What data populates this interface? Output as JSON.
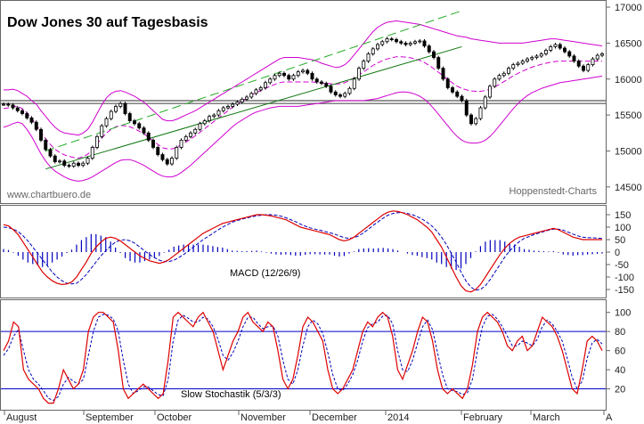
{
  "chart_data": [
    {
      "type": "candlestick",
      "title": "Dow Jones 30 auf Tagesbasis",
      "watermark_left": "www.chartbuero.de",
      "watermark_right": "Hoppenstedt-Charts",
      "xlabel": "",
      "ylabel": "",
      "y_ticks": [
        14500,
        15000,
        15500,
        16000,
        16500,
        17000
      ],
      "ylim": [
        14300,
        17050
      ],
      "x_month_labels": [
        "August",
        "September",
        "October",
        "November",
        "December",
        "2014",
        "February",
        "March",
        "A"
      ],
      "colors": {
        "bollinger": "#d000d0",
        "trend_upper": "#22aa22",
        "trend_lower": "#117711",
        "support_band": "#555555",
        "candle_up": "#ffffff",
        "candle_down": "#000000"
      },
      "price_close_path": [
        15650,
        15640,
        15600,
        15560,
        15520,
        15460,
        15400,
        15300,
        15150,
        15020,
        14930,
        14850,
        14860,
        14800,
        14790,
        14830,
        14800,
        14830,
        14900,
        15050,
        15200,
        15350,
        15450,
        15550,
        15620,
        15660,
        15520,
        15420,
        15380,
        15320,
        15250,
        15150,
        15050,
        14950,
        14880,
        14820,
        14900,
        15050,
        15150,
        15200,
        15250,
        15300,
        15380,
        15420,
        15480,
        15500,
        15560,
        15600,
        15620,
        15650,
        15680,
        15720,
        15750,
        15800,
        15850,
        15880,
        15950,
        16000,
        16050,
        16080,
        16050,
        16000,
        16050,
        16100,
        16120,
        16080,
        16000,
        15960,
        15940,
        15900,
        15820,
        15780,
        15760,
        15800,
        15870,
        16000,
        16150,
        16250,
        16350,
        16420,
        16480,
        16520,
        16560,
        16550,
        16520,
        16500,
        16480,
        16500,
        16520,
        16530,
        16460,
        16380,
        16300,
        16150,
        16000,
        15880,
        15820,
        15760,
        15700,
        15500,
        15380,
        15450,
        15600,
        15750,
        15900,
        16000,
        16050,
        16080,
        16150,
        16200,
        16220,
        16250,
        16280,
        16300,
        16320,
        16350,
        16400,
        16450,
        16480,
        16430,
        16380,
        16320,
        16250,
        16180,
        16120,
        16200,
        16280,
        16330,
        16350
      ],
      "bollinger_upper_path": [
        15850,
        15850,
        15860,
        15840,
        15800,
        15760,
        15700,
        15650,
        15560,
        15480,
        15400,
        15330,
        15280,
        15250,
        15240,
        15230,
        15220,
        15250,
        15300,
        15400,
        15520,
        15640,
        15740,
        15800,
        15830,
        15840,
        15820,
        15790,
        15760,
        15720,
        15680,
        15620,
        15560,
        15500,
        15440,
        15420,
        15420,
        15440,
        15470,
        15500,
        15530,
        15560,
        15600,
        15640,
        15680,
        15720,
        15760,
        15800,
        15840,
        15880,
        15920,
        15960,
        16000,
        16040,
        16080,
        16120,
        16160,
        16200,
        16240,
        16280,
        16300,
        16300,
        16300,
        16300,
        16290,
        16280,
        16270,
        16250,
        16220,
        16200,
        16180,
        16160,
        16170,
        16200,
        16260,
        16340,
        16420,
        16500,
        16580,
        16660,
        16720,
        16760,
        16790,
        16800,
        16810,
        16800,
        16790,
        16780,
        16770,
        16760,
        16740,
        16720,
        16700,
        16680,
        16660,
        16640,
        16620,
        16600,
        16590,
        16580,
        16560,
        16550,
        16540,
        16530,
        16520,
        16510,
        16500,
        16500,
        16500,
        16500,
        16500,
        16500,
        16510,
        16520,
        16530,
        16540,
        16550,
        16560,
        16560,
        16550,
        16540,
        16530,
        16520,
        16510,
        16500,
        16490,
        16480,
        16470,
        16460
      ],
      "bollinger_lower_path": [
        15330,
        15350,
        15380,
        15400,
        15380,
        15300,
        15200,
        15080,
        14960,
        14860,
        14780,
        14720,
        14680,
        14640,
        14610,
        14590,
        14580,
        14590,
        14610,
        14640,
        14680,
        14720,
        14760,
        14800,
        14840,
        14870,
        14880,
        14880,
        14860,
        14830,
        14800,
        14760,
        14720,
        14680,
        14650,
        14640,
        14640,
        14660,
        14700,
        14750,
        14800,
        14860,
        14920,
        14980,
        15040,
        15100,
        15160,
        15220,
        15280,
        15340,
        15390,
        15430,
        15470,
        15510,
        15540,
        15560,
        15580,
        15600,
        15610,
        15620,
        15620,
        15620,
        15620,
        15620,
        15630,
        15640,
        15650,
        15660,
        15670,
        15680,
        15690,
        15700,
        15700,
        15700,
        15700,
        15700,
        15700,
        15700,
        15710,
        15720,
        15730,
        15750,
        15770,
        15790,
        15810,
        15820,
        15820,
        15810,
        15790,
        15760,
        15720,
        15660,
        15590,
        15510,
        15430,
        15350,
        15270,
        15200,
        15150,
        15120,
        15110,
        15110,
        15120,
        15150,
        15200,
        15270,
        15350,
        15430,
        15510,
        15590,
        15660,
        15720,
        15770,
        15810,
        15840,
        15870,
        15890,
        15910,
        15930,
        15950,
        15960,
        15970,
        15980,
        15990,
        16000,
        16010,
        16020,
        16030,
        16040
      ],
      "support_lines": [
        15700,
        15660
      ],
      "trend_upper": {
        "from": [
          9,
          15000
        ],
        "to": [
          98,
          16950
        ]
      },
      "trend_lower": {
        "from": [
          9,
          14750
        ],
        "to": [
          98,
          16450
        ]
      }
    },
    {
      "type": "line",
      "name": "MACD (12/26/9)",
      "y_ticks": [
        -150,
        -100,
        -50,
        0,
        50,
        100,
        150
      ],
      "ylim": [
        -175,
        175
      ],
      "colors": {
        "macd": "#dd0000",
        "signal": "#0000bb",
        "hist": "#0000bb"
      },
      "macd_path": [
        110,
        105,
        90,
        70,
        40,
        10,
        -20,
        -50,
        -80,
        -100,
        -115,
        -125,
        -130,
        -128,
        -120,
        -100,
        -70,
        -40,
        -5,
        20,
        40,
        55,
        60,
        55,
        45,
        30,
        15,
        0,
        -15,
        -25,
        -35,
        -40,
        -45,
        -40,
        -30,
        -15,
        0,
        15,
        30,
        45,
        60,
        75,
        85,
        95,
        105,
        115,
        120,
        125,
        130,
        135,
        140,
        145,
        150,
        150,
        148,
        145,
        140,
        135,
        130,
        120,
        110,
        100,
        95,
        90,
        85,
        80,
        75,
        70,
        60,
        50,
        45,
        50,
        60,
        75,
        90,
        105,
        120,
        135,
        150,
        160,
        165,
        163,
        158,
        150,
        140,
        130,
        115,
        100,
        80,
        50,
        20,
        -20,
        -60,
        -100,
        -135,
        -155,
        -160,
        -150,
        -130,
        -100,
        -70,
        -40,
        -10,
        15,
        35,
        50,
        60,
        65,
        70,
        75,
        80,
        85,
        90,
        95,
        90,
        80,
        70,
        60,
        55,
        50,
        50,
        50,
        50,
        50
      ],
      "signal_path": [
        100,
        98,
        92,
        82,
        65,
        45,
        20,
        -5,
        -30,
        -55,
        -80,
        -100,
        -115,
        -125,
        -128,
        -125,
        -110,
        -90,
        -65,
        -40,
        -15,
        5,
        25,
        40,
        48,
        50,
        45,
        35,
        20,
        5,
        -10,
        -22,
        -32,
        -38,
        -38,
        -33,
        -22,
        -10,
        5,
        20,
        35,
        50,
        62,
        75,
        88,
        100,
        110,
        120,
        126,
        132,
        137,
        141,
        145,
        148,
        150,
        150,
        148,
        144,
        138,
        130,
        122,
        112,
        104,
        97,
        92,
        88,
        83,
        78,
        72,
        65,
        58,
        55,
        58,
        65,
        78,
        92,
        108,
        122,
        136,
        148,
        155,
        158,
        158,
        155,
        150,
        142,
        132,
        120,
        105,
        85,
        60,
        30,
        -5,
        -40,
        -80,
        -115,
        -140,
        -152,
        -150,
        -135,
        -110,
        -80,
        -50,
        -20,
        5,
        25,
        42,
        55,
        62,
        70,
        76,
        82,
        88,
        92,
        92,
        88,
        80,
        72,
        65,
        60,
        58,
        57,
        56,
        55
      ]
    },
    {
      "type": "line",
      "name": "Slow Stochastik (5/3/3)",
      "y_ticks": [
        20,
        40,
        60,
        80,
        100
      ],
      "ylim": [
        0,
        110
      ],
      "levels": [
        80,
        20
      ],
      "colors": {
        "k": "#dd0000",
        "d": "#0000bb",
        "levels": "#0000cc"
      },
      "k_path": [
        60,
        70,
        90,
        85,
        40,
        30,
        25,
        20,
        10,
        5,
        5,
        20,
        40,
        30,
        20,
        25,
        40,
        80,
        95,
        100,
        100,
        95,
        90,
        60,
        20,
        10,
        15,
        20,
        25,
        20,
        15,
        10,
        15,
        50,
        95,
        100,
        95,
        90,
        85,
        95,
        100,
        90,
        80,
        60,
        40,
        55,
        70,
        80,
        95,
        100,
        90,
        85,
        80,
        90,
        85,
        60,
        30,
        20,
        30,
        55,
        85,
        95,
        90,
        80,
        70,
        40,
        20,
        15,
        20,
        30,
        40,
        60,
        80,
        90,
        85,
        95,
        100,
        95,
        75,
        40,
        30,
        45,
        60,
        80,
        95,
        90,
        70,
        40,
        20,
        15,
        20,
        15,
        10,
        20,
        45,
        80,
        95,
        100,
        95,
        90,
        80,
        65,
        60,
        70,
        75,
        60,
        65,
        80,
        95,
        90,
        85,
        75,
        60,
        40,
        20,
        15,
        40,
        70,
        75,
        70,
        60
      ],
      "d_path": [
        55,
        62,
        75,
        82,
        60,
        40,
        30,
        25,
        18,
        10,
        8,
        12,
        25,
        32,
        28,
        25,
        30,
        55,
        80,
        95,
        98,
        97,
        93,
        80,
        50,
        25,
        15,
        18,
        22,
        22,
        18,
        14,
        13,
        30,
        70,
        92,
        97,
        94,
        90,
        90,
        95,
        93,
        85,
        72,
        55,
        50,
        58,
        70,
        85,
        95,
        95,
        88,
        83,
        85,
        86,
        75,
        50,
        30,
        25,
        40,
        65,
        85,
        92,
        88,
        78,
        58,
        35,
        20,
        18,
        25,
        35,
        50,
        70,
        84,
        88,
        90,
        96,
        97,
        88,
        60,
        40,
        38,
        50,
        68,
        85,
        92,
        82,
        58,
        35,
        20,
        18,
        17,
        14,
        16,
        30,
        60,
        85,
        96,
        98,
        93,
        85,
        75,
        65,
        65,
        70,
        68,
        65,
        72,
        85,
        92,
        88,
        80,
        70,
        52,
        32,
        20,
        28,
        52,
        68,
        72,
        67
      ]
    }
  ]
}
